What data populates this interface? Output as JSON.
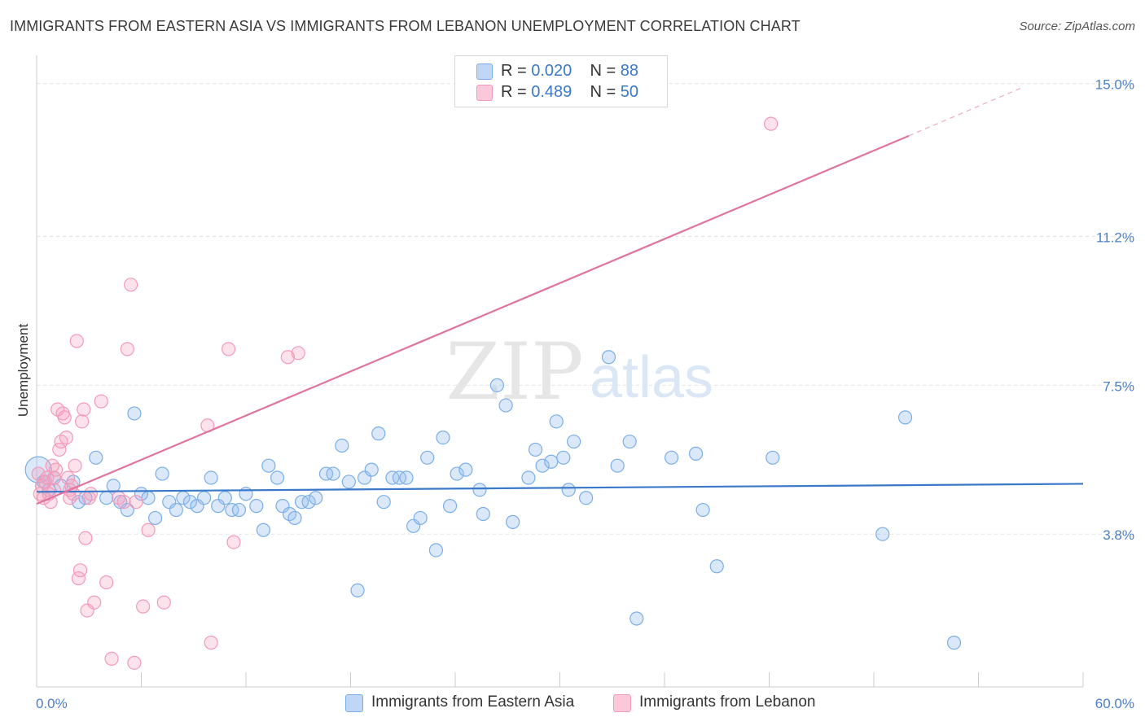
{
  "title": "IMMIGRANTS FROM EASTERN ASIA VS IMMIGRANTS FROM LEBANON UNEMPLOYMENT CORRELATION CHART",
  "source": "Source: ZipAtlas.com",
  "watermark": {
    "zip": "ZIP",
    "atlas": "atlas"
  },
  "legend": {
    "r_label": "R =",
    "n_label": "N =",
    "rows": [
      {
        "r": "0.020",
        "n": "88",
        "color": "#7aaee8"
      },
      {
        "r": "0.489",
        "n": "50",
        "color": "#f39ab8"
      }
    ]
  },
  "chart_data": {
    "type": "scatter",
    "title": "IMMIGRANTS FROM EASTERN ASIA VS IMMIGRANTS FROM LEBANON UNEMPLOYMENT CORRELATION CHART",
    "xlabel": "",
    "ylabel": "Unemployment",
    "xlim": [
      0,
      60
    ],
    "ylim": [
      0,
      15.5
    ],
    "x_tick_labels": [
      "0.0%",
      "60.0%"
    ],
    "y_ticks": [
      {
        "value": 3.8,
        "label": "3.8%"
      },
      {
        "value": 7.5,
        "label": "7.5%"
      },
      {
        "value": 11.2,
        "label": "11.2%"
      },
      {
        "value": 15.0,
        "label": "15.0%"
      }
    ],
    "grid": true,
    "series": [
      {
        "name": "Immigrants from Eastern Asia",
        "color": "#7aaee8",
        "line_color": "#3a78c9",
        "trend": {
          "x": [
            0,
            60
          ],
          "y": [
            4.85,
            5.05
          ]
        },
        "points": [
          [
            0.1,
            5.4
          ],
          [
            0.4,
            5.1
          ],
          [
            0.7,
            4.9
          ],
          [
            1.0,
            5.2
          ],
          [
            1.4,
            5.0
          ],
          [
            2.1,
            5.1
          ],
          [
            2.4,
            4.6
          ],
          [
            2.8,
            4.7
          ],
          [
            3.4,
            5.7
          ],
          [
            4.0,
            4.7
          ],
          [
            4.4,
            5.0
          ],
          [
            4.8,
            4.6
          ],
          [
            5.2,
            4.4
          ],
          [
            5.6,
            6.8
          ],
          [
            6.0,
            4.8
          ],
          [
            6.4,
            4.7
          ],
          [
            6.8,
            4.2
          ],
          [
            7.2,
            5.3
          ],
          [
            7.6,
            4.6
          ],
          [
            8.0,
            4.4
          ],
          [
            8.4,
            4.7
          ],
          [
            8.8,
            4.6
          ],
          [
            9.2,
            4.5
          ],
          [
            9.6,
            4.7
          ],
          [
            10.0,
            5.2
          ],
          [
            10.4,
            4.5
          ],
          [
            10.8,
            4.7
          ],
          [
            11.2,
            4.4
          ],
          [
            11.6,
            4.4
          ],
          [
            12.0,
            4.8
          ],
          [
            12.6,
            4.5
          ],
          [
            13.0,
            3.9
          ],
          [
            13.3,
            5.5
          ],
          [
            13.8,
            5.2
          ],
          [
            14.1,
            4.5
          ],
          [
            14.5,
            4.3
          ],
          [
            14.8,
            4.2
          ],
          [
            15.2,
            4.6
          ],
          [
            15.6,
            4.6
          ],
          [
            16.0,
            4.7
          ],
          [
            16.6,
            5.3
          ],
          [
            17.0,
            5.3
          ],
          [
            17.5,
            6.0
          ],
          [
            17.9,
            5.1
          ],
          [
            18.4,
            2.4
          ],
          [
            18.8,
            5.2
          ],
          [
            19.2,
            5.4
          ],
          [
            19.6,
            6.3
          ],
          [
            19.9,
            4.6
          ],
          [
            20.4,
            5.2
          ],
          [
            20.8,
            5.2
          ],
          [
            21.2,
            5.2
          ],
          [
            21.6,
            4.0
          ],
          [
            22.0,
            4.2
          ],
          [
            22.4,
            5.7
          ],
          [
            22.9,
            3.4
          ],
          [
            23.3,
            6.2
          ],
          [
            23.7,
            4.5
          ],
          [
            24.1,
            5.3
          ],
          [
            24.6,
            5.4
          ],
          [
            25.4,
            4.9
          ],
          [
            25.6,
            4.3
          ],
          [
            26.4,
            7.5
          ],
          [
            26.9,
            7.0
          ],
          [
            27.3,
            4.1
          ],
          [
            28.2,
            5.2
          ],
          [
            28.6,
            5.9
          ],
          [
            29.0,
            5.5
          ],
          [
            29.5,
            5.6
          ],
          [
            29.8,
            6.6
          ],
          [
            30.2,
            5.7
          ],
          [
            30.5,
            4.9
          ],
          [
            30.8,
            6.1
          ],
          [
            31.5,
            4.7
          ],
          [
            32.8,
            8.2
          ],
          [
            33.3,
            5.5
          ],
          [
            34.0,
            6.1
          ],
          [
            34.4,
            1.7
          ],
          [
            36.4,
            5.7
          ],
          [
            37.8,
            5.8
          ],
          [
            38.2,
            4.4
          ],
          [
            39.0,
            3.0
          ],
          [
            42.2,
            5.7
          ],
          [
            48.5,
            3.8
          ],
          [
            49.8,
            6.7
          ],
          [
            52.6,
            1.1
          ]
        ]
      },
      {
        "name": "Immigrants from Lebanon",
        "color": "#f39ab8",
        "line_color": "#e0749e",
        "trend": {
          "x": [
            0,
            50
          ],
          "y": [
            4.55,
            13.7
          ]
        },
        "trend_ext": {
          "x": [
            50,
            56.5
          ],
          "y": [
            13.7,
            14.9
          ]
        },
        "points": [
          [
            0.1,
            5.3
          ],
          [
            0.2,
            4.8
          ],
          [
            0.3,
            5.0
          ],
          [
            0.4,
            4.7
          ],
          [
            0.5,
            5.1
          ],
          [
            0.6,
            5.2
          ],
          [
            0.7,
            4.8
          ],
          [
            0.8,
            4.6
          ],
          [
            0.9,
            5.5
          ],
          [
            1.0,
            4.9
          ],
          [
            1.0,
            5.2
          ],
          [
            1.1,
            5.4
          ],
          [
            1.2,
            6.9
          ],
          [
            1.3,
            5.9
          ],
          [
            1.4,
            6.1
          ],
          [
            1.5,
            6.8
          ],
          [
            1.6,
            6.7
          ],
          [
            1.7,
            6.2
          ],
          [
            1.8,
            5.2
          ],
          [
            1.9,
            4.9
          ],
          [
            1.9,
            4.7
          ],
          [
            2.0,
            5.0
          ],
          [
            2.1,
            4.8
          ],
          [
            2.2,
            5.5
          ],
          [
            2.3,
            8.6
          ],
          [
            2.4,
            2.7
          ],
          [
            2.5,
            2.9
          ],
          [
            2.6,
            6.6
          ],
          [
            2.7,
            6.9
          ],
          [
            2.8,
            3.7
          ],
          [
            2.9,
            1.9
          ],
          [
            3.0,
            4.7
          ],
          [
            3.1,
            4.8
          ],
          [
            3.3,
            2.1
          ],
          [
            3.7,
            7.1
          ],
          [
            4.0,
            2.6
          ],
          [
            4.3,
            0.7
          ],
          [
            4.7,
            4.7
          ],
          [
            5.0,
            4.6
          ],
          [
            5.2,
            8.4
          ],
          [
            5.4,
            10.0
          ],
          [
            5.6,
            0.6
          ],
          [
            5.7,
            4.6
          ],
          [
            6.1,
            2.0
          ],
          [
            6.4,
            3.9
          ],
          [
            7.3,
            2.1
          ],
          [
            9.8,
            6.5
          ],
          [
            10.0,
            1.1
          ],
          [
            11.0,
            8.4
          ],
          [
            11.3,
            3.6
          ],
          [
            14.4,
            8.2
          ],
          [
            15.0,
            8.3
          ],
          [
            42.1,
            14.0
          ]
        ]
      }
    ]
  },
  "bottom_legend": [
    {
      "label": "Immigrants from Eastern Asia",
      "color": "#7aaee8"
    },
    {
      "label": "Immigrants from Lebanon",
      "color": "#f39ab8"
    }
  ]
}
